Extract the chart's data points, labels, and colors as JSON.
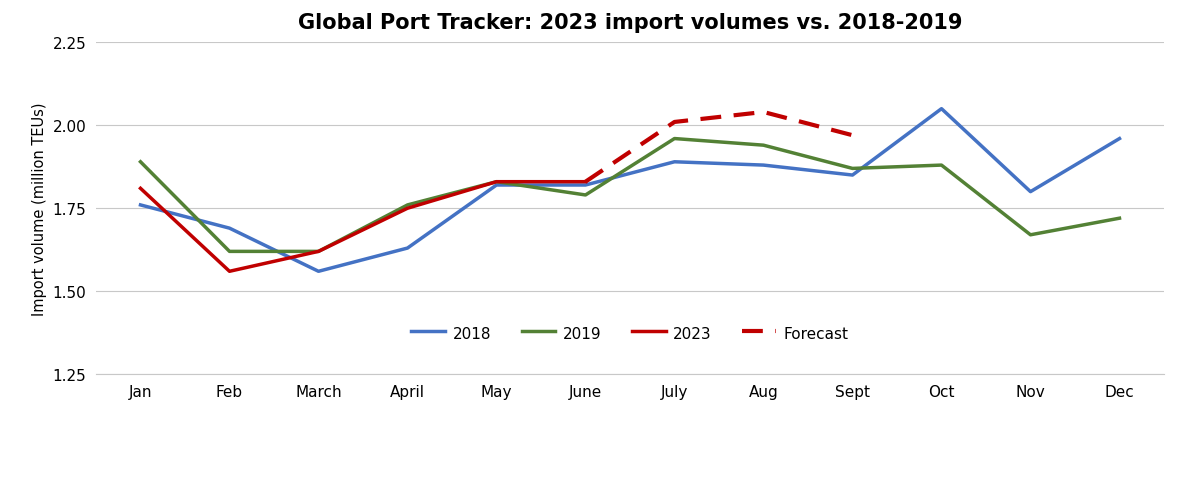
{
  "title": "Global Port Tracker: 2023 import volumes vs. 2018-2019",
  "ylabel": "Import volume (million TEUs)",
  "months": [
    "Jan",
    "Feb",
    "March",
    "April",
    "May",
    "June",
    "July",
    "Aug",
    "Sept",
    "Oct",
    "Nov",
    "Dec"
  ],
  "series_2018": [
    1.76,
    1.69,
    1.56,
    1.63,
    1.82,
    1.82,
    1.89,
    1.88,
    1.85,
    2.05,
    1.8,
    1.96
  ],
  "series_2019": [
    1.89,
    1.62,
    1.62,
    1.76,
    1.83,
    1.79,
    1.96,
    1.94,
    1.87,
    1.88,
    1.67,
    1.72
  ],
  "series_2023_solid": [
    1.81,
    1.56,
    1.62,
    1.75,
    1.83,
    1.83,
    null,
    null,
    null,
    null,
    null,
    null
  ],
  "series_2023_dash": [
    null,
    null,
    null,
    null,
    null,
    1.83,
    2.01,
    2.04,
    1.97,
    null,
    null,
    null
  ],
  "color_2018": "#4472C4",
  "color_2019": "#538135",
  "color_2023": "#C00000",
  "color_forecast": "#C00000",
  "ylim": [
    1.25,
    2.25
  ],
  "yticks": [
    1.25,
    1.5,
    1.75,
    2.0,
    2.25
  ],
  "background_color": "#ffffff",
  "title_fontsize": 15,
  "axis_fontsize": 10.5,
  "tick_fontsize": 11,
  "legend_fontsize": 11,
  "linewidth": 2.5,
  "dash_linewidth": 3.0,
  "figsize": [
    12.0,
    4.81
  ]
}
